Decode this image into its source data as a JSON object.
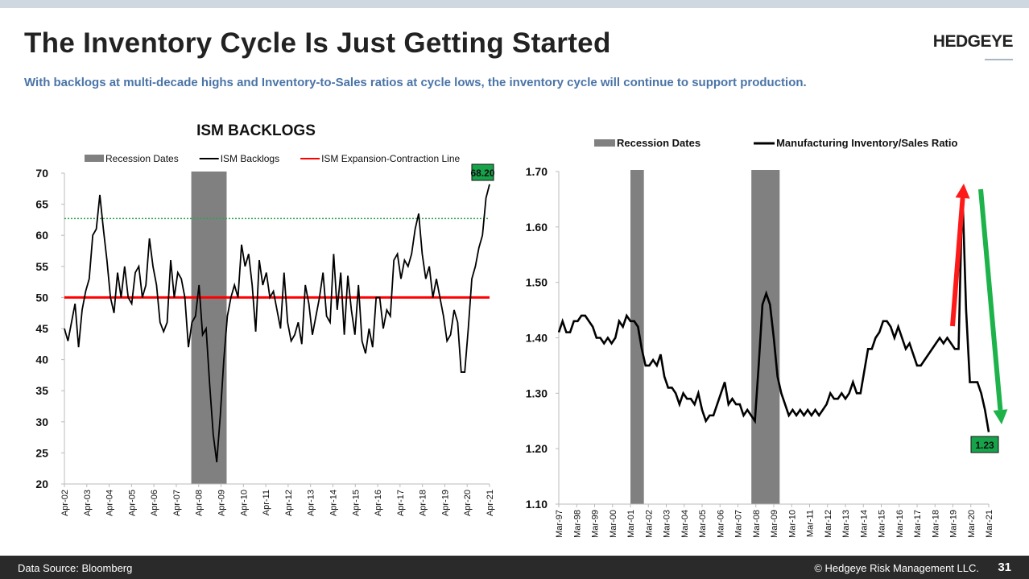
{
  "header": {
    "title": "The Inventory Cycle Is Just Getting Started",
    "logo": "HEDGEYE",
    "subtitle": "With backlogs at multi-decade highs and Inventory-to-Sales ratios at cycle lows, the inventory cycle will continue to support production."
  },
  "footer": {
    "source": "Data Source: Bloomberg",
    "copyright": "© Hedgeye Risk Management LLC.",
    "page": "31"
  },
  "colors": {
    "recession": "#808080",
    "series": "#000000",
    "expansion_line": "#ff0000",
    "dotted": "#2ea44f",
    "up_arrow": "#ff1a1a",
    "down_arrow": "#1db34a",
    "label_bg": "#16a34a"
  },
  "chart_data": [
    {
      "type": "line",
      "title": "ISM BACKLOGS",
      "legend": [
        "Recession Dates",
        "ISM Backlogs",
        "ISM Expansion-Contraction Line"
      ],
      "legend_placement": "top",
      "ylim": [
        20,
        70
      ],
      "yticks": [
        20,
        25,
        30,
        35,
        40,
        45,
        50,
        55,
        60,
        65,
        70
      ],
      "xlim": [
        2002.25,
        2021.25
      ],
      "xticks": [
        "Apr-02",
        "Apr-03",
        "Apr-04",
        "Apr-05",
        "Apr-06",
        "Apr-07",
        "Apr-08",
        "Apr-09",
        "Apr-10",
        "Apr-11",
        "Apr-12",
        "Apr-13",
        "Apr-14",
        "Apr-15",
        "Apr-16",
        "Apr-17",
        "Apr-18",
        "Apr-19",
        "Apr-20",
        "Apr-21"
      ],
      "recessions": [
        [
          2007.92,
          2009.5
        ]
      ],
      "expansion_line": 50,
      "dotted_line": 62.7,
      "last_value_label": "68.20",
      "series": [
        {
          "name": "ISM Backlogs",
          "values": [
            45,
            43,
            46,
            49,
            42,
            48,
            51,
            53,
            60,
            61,
            66.5,
            61,
            56,
            50,
            47.5,
            54,
            50,
            55,
            50,
            49,
            54,
            55,
            50,
            52,
            59.5,
            55,
            52,
            46,
            44.5,
            46,
            56,
            50,
            54,
            53,
            50,
            42,
            46,
            47,
            52,
            44,
            45,
            36,
            28,
            23.5,
            31,
            40,
            47,
            50,
            52,
            50,
            58.5,
            55,
            57,
            52,
            44.5,
            56,
            52,
            54,
            50,
            51,
            48,
            45,
            54,
            46,
            43,
            44,
            46,
            42.5,
            52,
            49,
            44,
            47,
            50,
            54,
            47,
            46,
            57,
            48,
            54,
            44,
            53.5,
            48,
            44,
            52,
            43,
            41,
            45,
            42,
            50,
            50,
            45,
            48,
            47,
            56,
            57,
            53,
            56,
            55,
            57,
            61,
            63.5,
            57,
            53,
            55,
            50,
            53,
            50,
            47,
            43,
            44,
            48,
            46,
            38,
            38,
            45,
            53,
            55,
            58,
            60,
            66,
            68.2
          ]
        }
      ]
    },
    {
      "type": "line",
      "title": "",
      "legend": [
        "Recession Dates",
        "Manufacturing Inventory/Sales Ratio"
      ],
      "legend_placement": "top",
      "ylim": [
        1.1,
        1.7
      ],
      "yticks": [
        "1.10",
        "1.20",
        "1.30",
        "1.40",
        "1.50",
        "1.60",
        "1.70"
      ],
      "xlim": [
        1997.17,
        2021.17
      ],
      "xticks": [
        "Mar-97",
        "Mar-98",
        "Mar-99",
        "Mar-00",
        "Mar-01",
        "Mar-02",
        "Mar-03",
        "Mar-04",
        "Mar-05",
        "Mar-06",
        "Mar-07",
        "Mar-08",
        "Mar-09",
        "Mar-10",
        "Mar-11",
        "Mar-12",
        "Mar-13",
        "Mar-14",
        "Mar-15",
        "Mar-16",
        "Mar-17",
        "Mar-18",
        "Mar-19",
        "Mar-20",
        "Mar-21"
      ],
      "recessions": [
        [
          2001.17,
          2001.92
        ],
        [
          2007.92,
          2009.5
        ]
      ],
      "last_value_label": "1.23",
      "series": [
        {
          "name": "Manufacturing Inventory/Sales Ratio",
          "values": [
            1.41,
            1.43,
            1.41,
            1.41,
            1.43,
            1.43,
            1.44,
            1.44,
            1.43,
            1.42,
            1.4,
            1.4,
            1.39,
            1.4,
            1.39,
            1.4,
            1.43,
            1.42,
            1.44,
            1.43,
            1.43,
            1.42,
            1.38,
            1.35,
            1.35,
            1.36,
            1.35,
            1.37,
            1.33,
            1.31,
            1.31,
            1.3,
            1.28,
            1.3,
            1.29,
            1.29,
            1.28,
            1.3,
            1.27,
            1.25,
            1.26,
            1.26,
            1.28,
            1.3,
            1.32,
            1.28,
            1.29,
            1.28,
            1.28,
            1.26,
            1.27,
            1.26,
            1.25,
            1.35,
            1.46,
            1.48,
            1.46,
            1.4,
            1.33,
            1.3,
            1.28,
            1.26,
            1.27,
            1.26,
            1.27,
            1.26,
            1.27,
            1.26,
            1.27,
            1.26,
            1.27,
            1.28,
            1.3,
            1.29,
            1.29,
            1.3,
            1.29,
            1.3,
            1.32,
            1.3,
            1.3,
            1.34,
            1.38,
            1.38,
            1.4,
            1.41,
            1.43,
            1.43,
            1.42,
            1.4,
            1.42,
            1.4,
            1.38,
            1.39,
            1.37,
            1.35,
            1.35,
            1.36,
            1.37,
            1.38,
            1.39,
            1.4,
            1.39,
            1.4,
            1.39,
            1.38,
            1.38,
            1.67,
            1.45,
            1.32,
            1.32,
            1.32,
            1.3,
            1.27,
            1.23
          ]
        }
      ]
    }
  ]
}
